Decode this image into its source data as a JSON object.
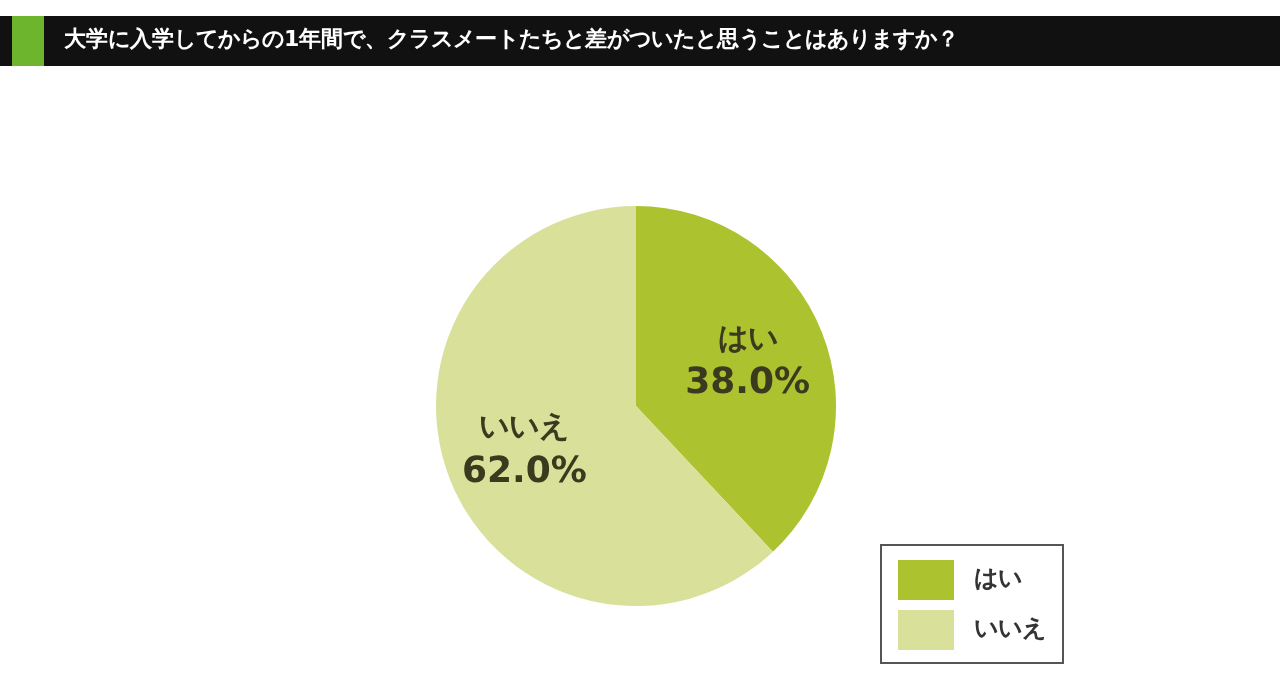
{
  "chart_data": {
    "type": "pie",
    "title": "大学に入学してからの1年間で、クラスメートたちと差がついたと思うことはありますか？",
    "categories": [
      "はい",
      "いいえ"
    ],
    "values": [
      38.0,
      62.0
    ],
    "colors": [
      "#adc22f",
      "#d9e09a"
    ],
    "value_labels": [
      "38.0%",
      "62.0%"
    ],
    "legend": "bottom right"
  }
}
